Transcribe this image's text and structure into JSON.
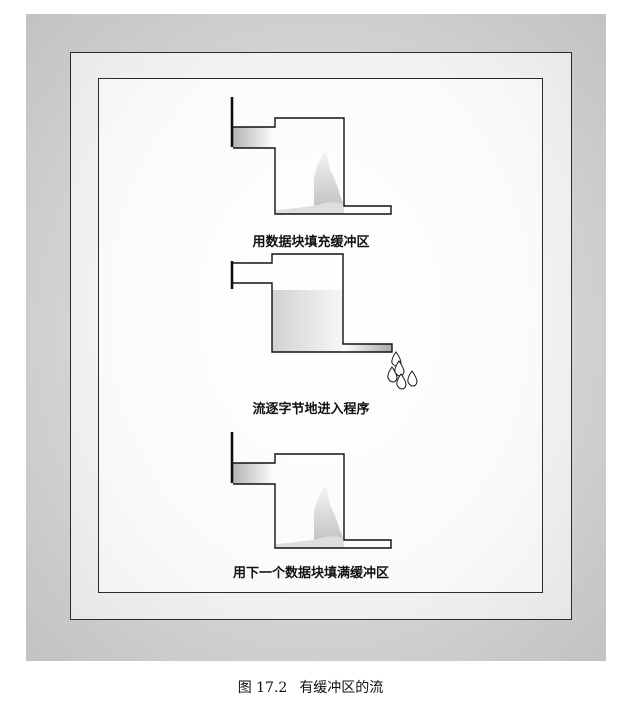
{
  "panels": [
    {
      "id": "fill",
      "caption": "用数据块填充缓冲区"
    },
    {
      "id": "drain",
      "caption": "流逐字节地进入程序"
    },
    {
      "id": "refill",
      "caption": "用下一个数据块填满缓冲区"
    }
  ],
  "figure": {
    "number": "图 17.2",
    "title": "有缓冲区的流"
  },
  "colors": {
    "line": "#111111",
    "gradient_dark": "#b4b4b4",
    "gradient_light": "#ffffff"
  }
}
